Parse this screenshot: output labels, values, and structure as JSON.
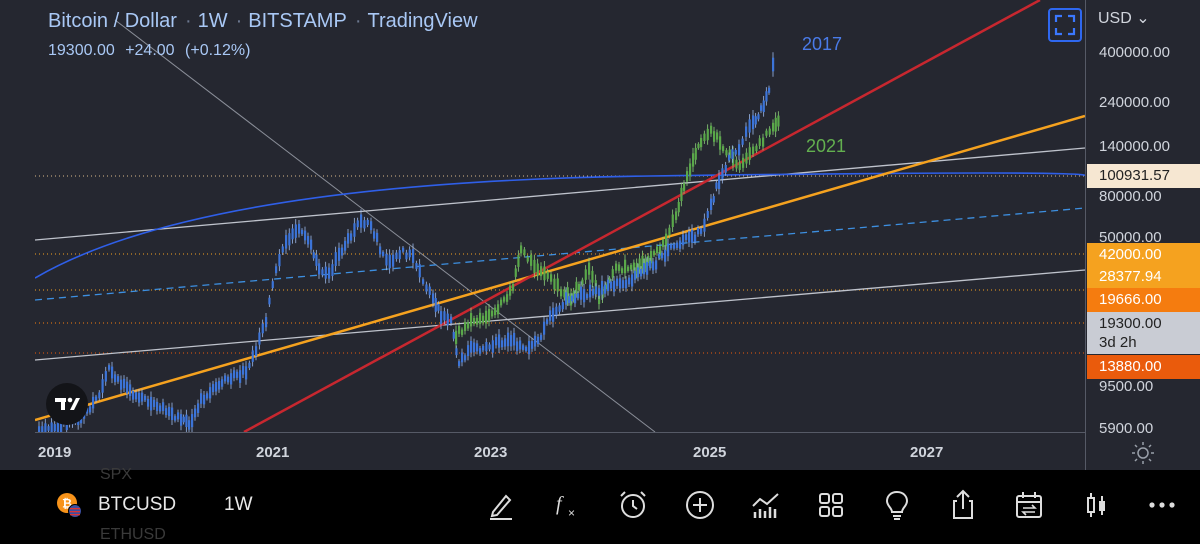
{
  "header": {
    "symbol_name": "Bitcoin / Dollar",
    "interval": "1W",
    "exchange": "BITSTAMP",
    "platform": "TradingView",
    "last_price": "19300.00",
    "change_abs": "+24.00",
    "change_pct": "(+0.12%)",
    "text_color": "#a9c8f5"
  },
  "annotations": {
    "label_2017": "2017",
    "label_2021": "2021",
    "color_2017": "#4a7be8",
    "color_2021": "#63b04f"
  },
  "price_axis": {
    "currency": "USD",
    "ticks": [
      "400000.00",
      "240000.00",
      "140000.00",
      "80000.00",
      "50000.00",
      "9500.00",
      "5900.00"
    ],
    "markers": [
      {
        "label": "100931.57",
        "bg": "#f6e7d2",
        "color": "#222222"
      },
      {
        "label": "42000.00",
        "bg": "#f5a21f",
        "color": "#ffffff"
      },
      {
        "label": "28377.94",
        "bg": "#f5a21f",
        "color": "#ffffff"
      },
      {
        "label": "19666.00",
        "bg": "#f57c0f",
        "color": "#ffffff"
      },
      {
        "label": "19300.00",
        "sublabel": "3d 2h",
        "bg": "#c9ccd4",
        "color": "#222222"
      },
      {
        "label": "13880.00",
        "bg": "#ea5b0c",
        "color": "#ffffff"
      }
    ]
  },
  "time_axis": {
    "labels": [
      "2019",
      "2021",
      "2023",
      "2025",
      "2027"
    ]
  },
  "colors": {
    "background": "#252730",
    "candles": "#3c74d8",
    "wick": "#9db9ea",
    "overlay_2021": "#5aa84a",
    "red_line": "#c7272f",
    "orange_line": "#f5a21f",
    "channel_line": "#bfc3cc",
    "dashed_line": "#3d8fe0",
    "arc": "#2f5fe8"
  },
  "toolbar": {
    "symbol": "BTCUSD",
    "interval": "1W",
    "ghost_top": "SPX",
    "ghost_bottom": "ETHUSD",
    "icons": [
      "draw-icon",
      "indicators-icon",
      "alert-icon",
      "add-icon",
      "chart-type-icon",
      "layouts-icon",
      "ideas-icon",
      "share-icon",
      "replay-icon",
      "candle-style-icon",
      "more-icon"
    ]
  }
}
